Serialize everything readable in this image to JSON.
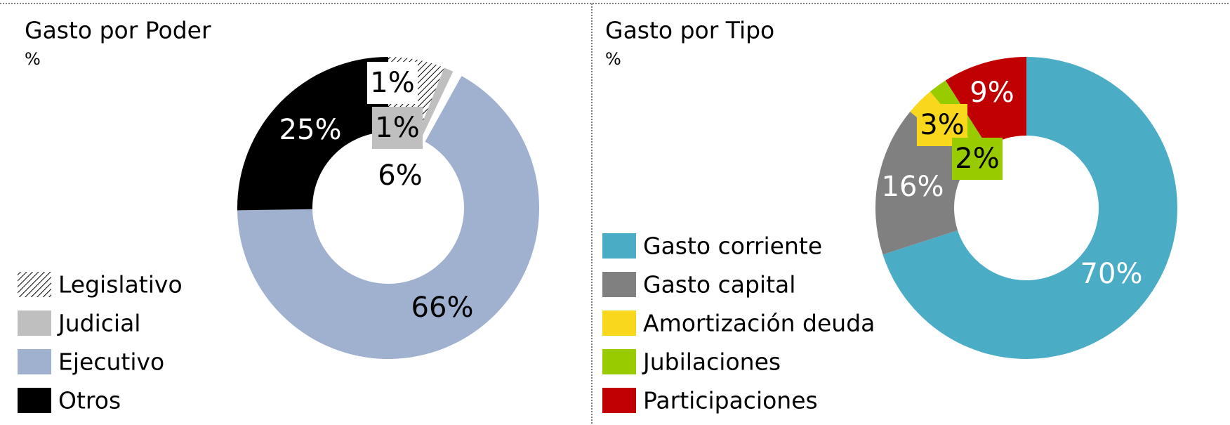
{
  "chart_data": [
    {
      "type": "donut",
      "title": "Gasto por Poder",
      "subtitle": "%",
      "categories": [
        "Legislativo",
        "Judicial",
        null,
        "Ejecutivo",
        "Otros"
      ],
      "values": [
        6,
        1,
        1,
        66,
        25
      ],
      "value_labels": [
        "6%",
        "1%",
        "1%",
        "66%",
        "25%"
      ],
      "colors": [
        "hatch",
        "#bfbfbf",
        "#ffffff",
        "#9fb1cf",
        "#000000"
      ]
    },
    {
      "type": "donut",
      "title": "Gasto por Tipo",
      "subtitle": "%",
      "categories": [
        "Gasto corriente",
        "Gasto capital",
        "Amortización deuda",
        "Jubilaciones",
        "Participaciones"
      ],
      "values": [
        70,
        16,
        3,
        2,
        9
      ],
      "value_labels": [
        "70%",
        "16%",
        "3%",
        "2%",
        "9%"
      ],
      "colors": [
        "#4bacc6",
        "#808080",
        "#f9d71c",
        "#99cc00",
        "#c00000"
      ]
    }
  ]
}
